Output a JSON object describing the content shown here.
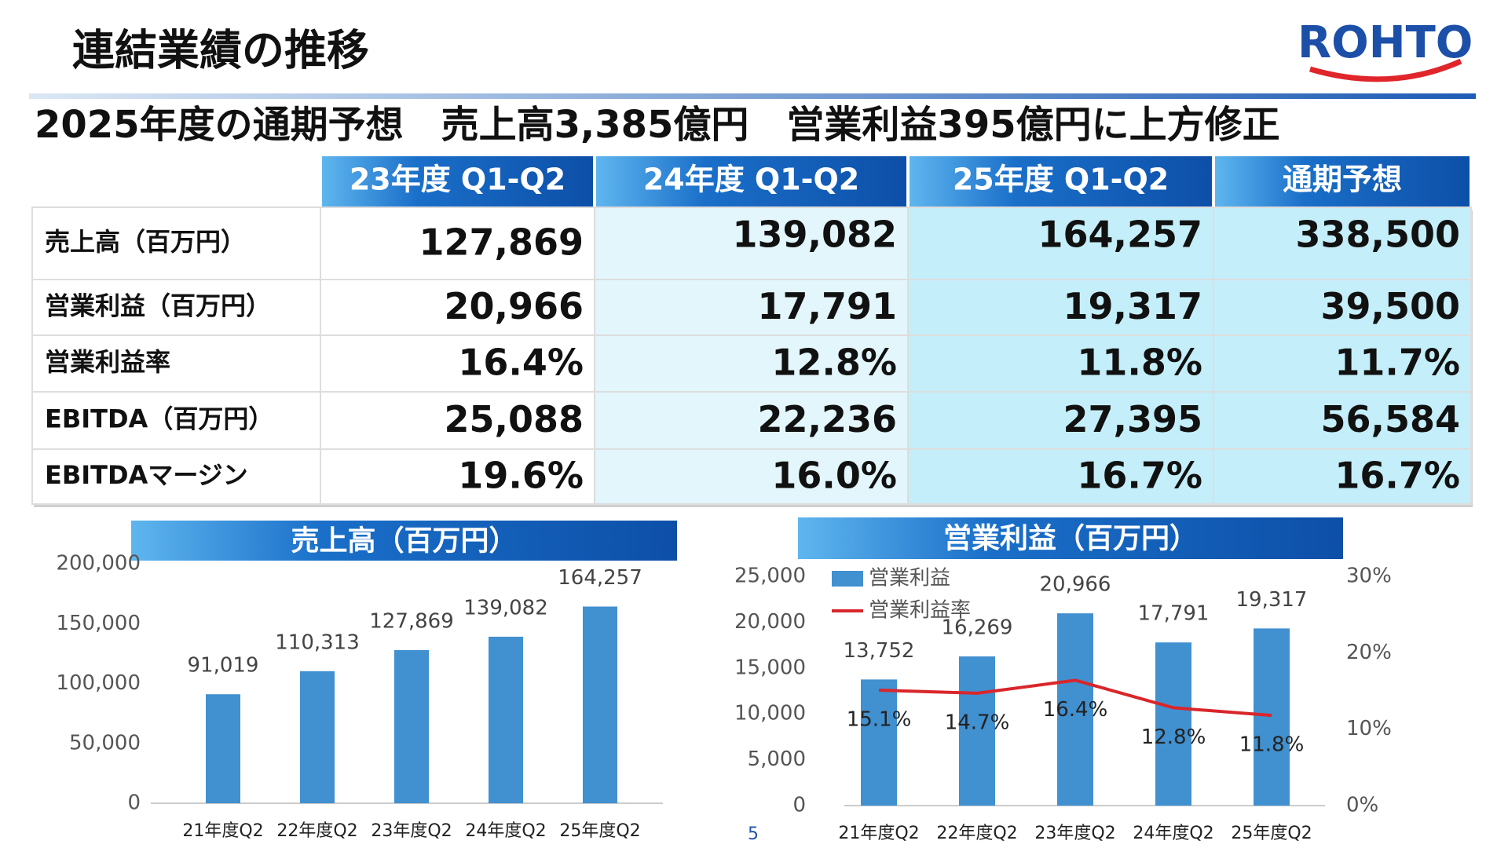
{
  "header": {
    "title": "連結業績の推移",
    "logo": "ROHTO",
    "subtitle": "2025年度の通期予想　売上高3,385億円　営業利益395億円に上方修正"
  },
  "table": {
    "columns": [
      "23年度 Q1-Q2",
      "24年度 Q1-Q2",
      "25年度 Q1-Q2",
      "通期予想"
    ],
    "rows": [
      {
        "label": "売上高（百万円）",
        "cells": [
          "127,869",
          "139,082",
          "164,257",
          "338,500"
        ]
      },
      {
        "label": "営業利益（百万円）",
        "cells": [
          "20,966",
          "17,791",
          "19,317",
          "39,500"
        ]
      },
      {
        "label": "営業利益率",
        "cells": [
          "16.4%",
          "12.8%",
          "11.8%",
          "11.7%"
        ]
      },
      {
        "label": "EBITDA（百万円）",
        "cells": [
          "25,088",
          "22,236",
          "27,395",
          "56,584"
        ]
      },
      {
        "label": "EBITDAマージン",
        "cells": [
          "19.6%",
          "16.0%",
          "16.7%",
          "16.7%"
        ]
      }
    ]
  },
  "chart_data": [
    {
      "type": "bar",
      "title": "売上高（百万円）",
      "categories": [
        "21年度Q2",
        "22年度Q2",
        "23年度Q2",
        "24年度Q2",
        "25年度Q2"
      ],
      "series": [
        {
          "color": "#4190d0",
          "values": [
            91019,
            110313,
            127869,
            139082,
            164257
          ],
          "value_labels": [
            "91,019",
            "110,313",
            "127,869",
            "139,082",
            "164,257"
          ]
        }
      ],
      "ylim": [
        0,
        200000
      ],
      "yticks": [
        0,
        {
          "value": 50000,
          "label": "50,000"
        },
        {
          "value": 100000,
          "label": "100,000"
        },
        {
          "value": 150000,
          "label": "150,000"
        },
        {
          "value": 200000,
          "label": "200,000"
        }
      ]
    },
    {
      "type": "bar",
      "title": "営業利益（百万円）",
      "categories": [
        "21年度Q2",
        "22年度Q2",
        "23年度Q2",
        "24年度Q2",
        "25年度Q2"
      ],
      "series": [
        {
          "name": "営業利益",
          "type": "bar",
          "color": "#4190d0",
          "values": [
            13752,
            16269,
            20966,
            17791,
            19317
          ],
          "value_labels": [
            "13,752",
            "16,269",
            "20,966",
            "17,791",
            "19,317"
          ]
        },
        {
          "name": "営業利益率",
          "type": "line",
          "axis": "y2",
          "color": "#d9262b",
          "values": [
            15.1,
            14.7,
            16.4,
            12.8,
            11.8
          ],
          "value_labels": [
            "15.1%",
            "14.7%",
            "16.4%",
            "12.8%",
            "11.8%"
          ]
        }
      ],
      "ylim": [
        0,
        25000
      ],
      "yticks": [
        0,
        {
          "value": 5000,
          "label": "5,000"
        },
        {
          "value": 10000,
          "label": "10,000"
        },
        {
          "value": 15000,
          "label": "15,000"
        },
        {
          "value": 20000,
          "label": "20,000"
        },
        {
          "value": 25000,
          "label": "25,000"
        }
      ],
      "y2lim": [
        0,
        30
      ],
      "y2ticks": [
        {
          "value": 0,
          "label": "0%"
        },
        {
          "value": 10,
          "label": "10%"
        },
        {
          "value": 20,
          "label": "20%"
        },
        {
          "value": 30,
          "label": "30%"
        }
      ]
    }
  ],
  "page_number": "5"
}
